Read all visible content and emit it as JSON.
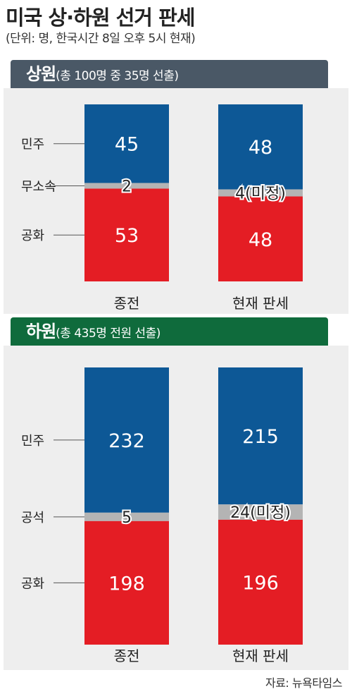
{
  "header": {
    "title": "미국 상·하원 선거 판세",
    "subtitle": "(단위: 명, 한국시간 8일 오후 5시 현재)"
  },
  "source": "자료: 뉴욕타임스",
  "colors": {
    "dem": "#0d5896",
    "rep": "#e41d24",
    "other": "#b4b4b4",
    "senate_band": "#4a5866",
    "house_band": "#0f6b3c",
    "panel": "#eeeeee"
  },
  "chart_data": [
    {
      "type": "bar",
      "stacked": true,
      "title": "상원",
      "subtitle": "(총 100명 중 35명 선출)",
      "categories": [
        "종전",
        "현재 판세"
      ],
      "series": [
        {
          "name": "민주",
          "values": [
            45,
            48
          ],
          "labels": [
            "45",
            "48"
          ]
        },
        {
          "name": "무소속",
          "values": [
            2,
            4
          ],
          "labels": [
            "2",
            "4(미정)"
          ]
        },
        {
          "name": "공화",
          "values": [
            53,
            48
          ],
          "labels": [
            "53",
            "48"
          ]
        }
      ]
    },
    {
      "type": "bar",
      "stacked": true,
      "title": "하원",
      "subtitle": "(총 435명 전원 선출)",
      "categories": [
        "종전",
        "현재 판세"
      ],
      "legend_labels": [
        "민주",
        "공석",
        "공화"
      ],
      "series": [
        {
          "values": [
            232,
            215
          ],
          "labels": [
            "232",
            "215"
          ]
        },
        {
          "values": [
            5,
            24
          ],
          "labels": [
            "5",
            "24(미정)"
          ]
        },
        {
          "values": [
            198,
            196
          ],
          "labels": [
            "198",
            "196"
          ]
        }
      ]
    }
  ]
}
